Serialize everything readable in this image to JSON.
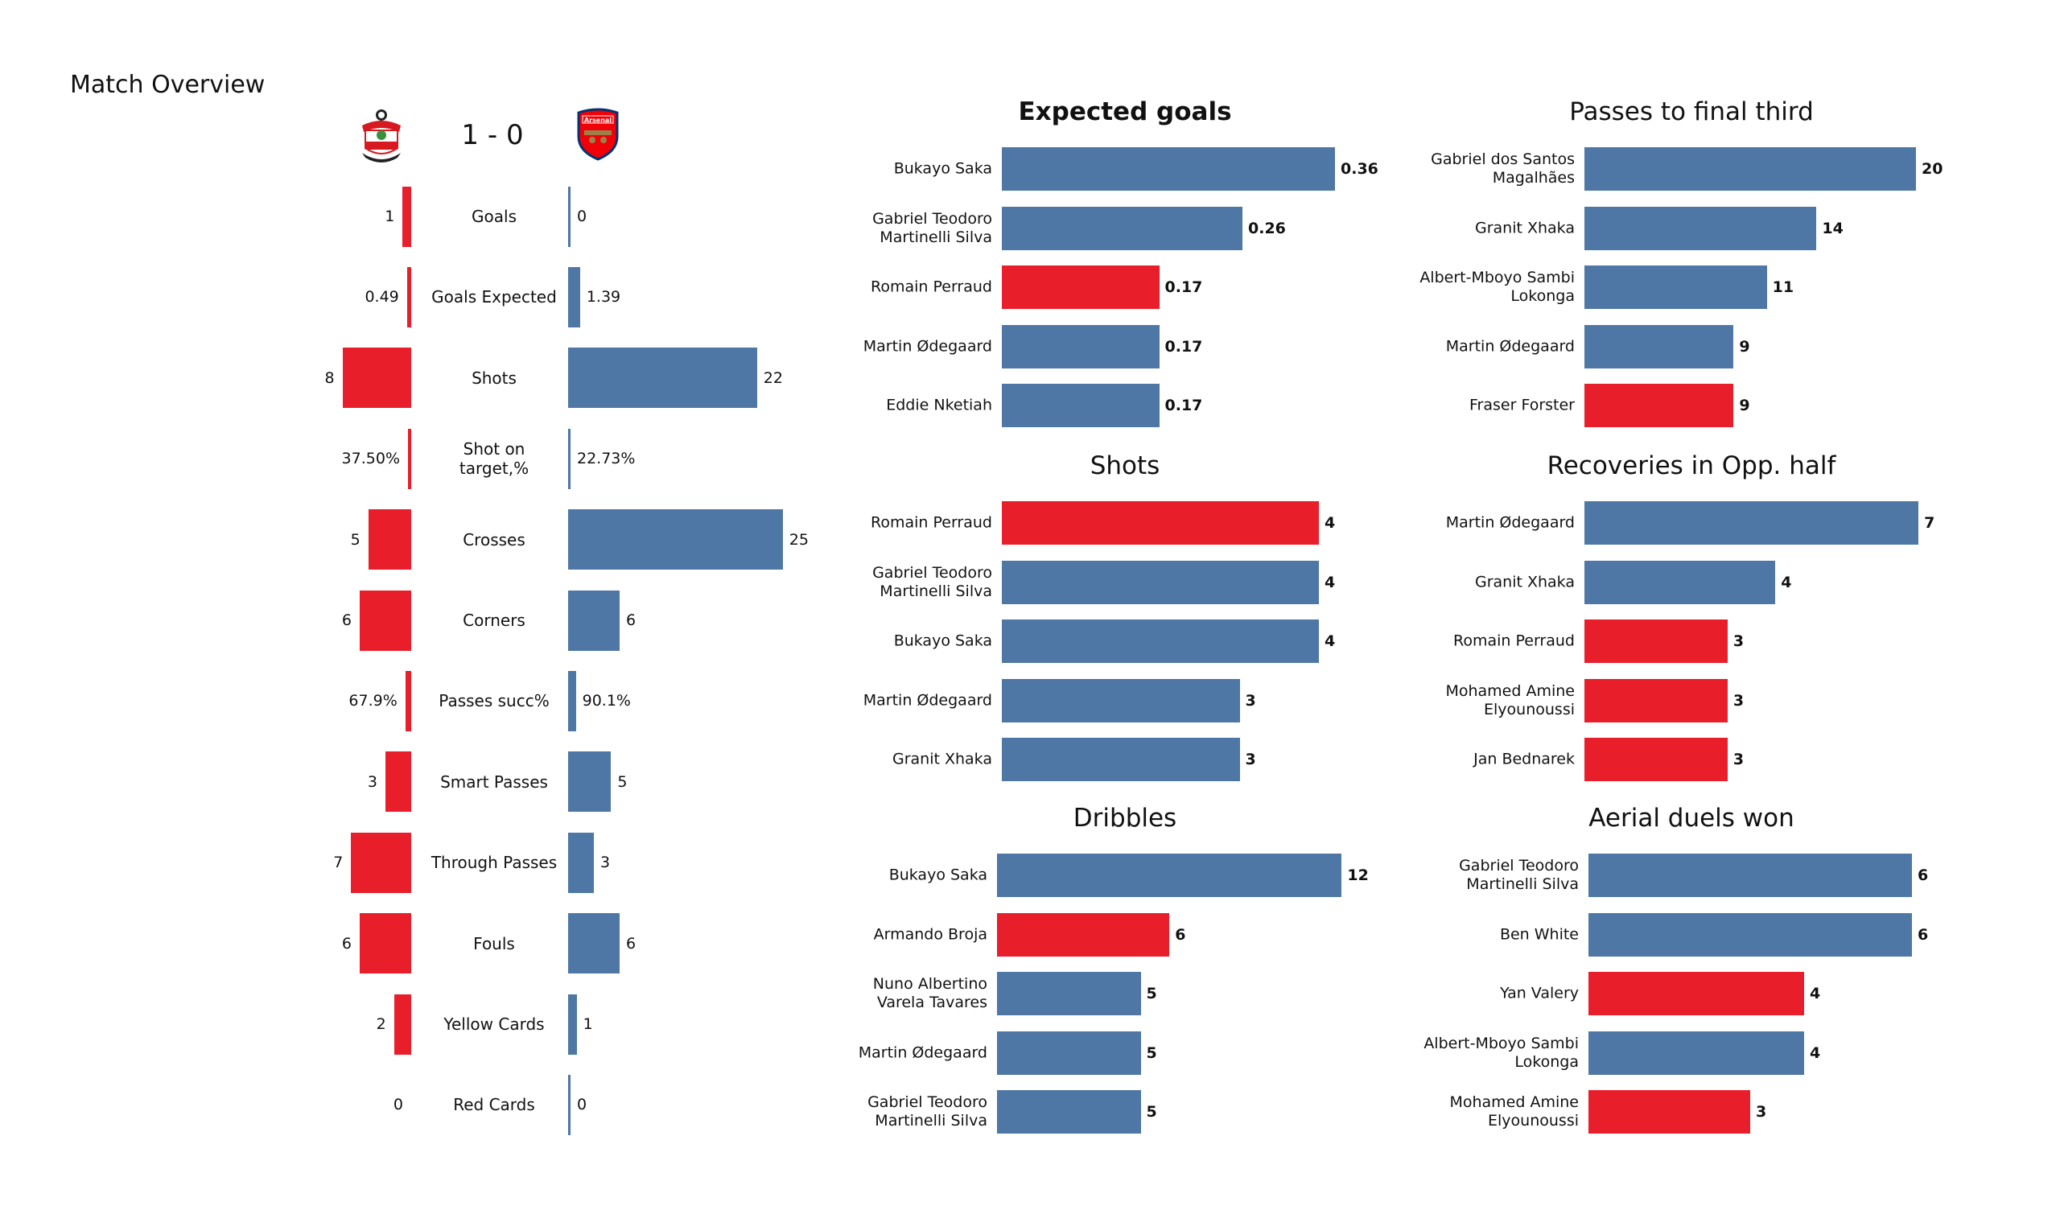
{
  "header": {
    "title": "Match Overview",
    "score": "1 - 0",
    "home_team_logo": "southampton-crest",
    "away_team_logo": "arsenal-crest"
  },
  "colors": {
    "home": "#e81e2b",
    "away": "#4e77a5"
  },
  "chart_data": [
    {
      "type": "bar",
      "orientation": "diverging-horizontal",
      "title": "Match Overview",
      "categories": [
        "Goals",
        "Goals Expected",
        "Shots",
        "Shot on\ntarget,%",
        "Crosses",
        "Corners",
        "Passes succ%",
        "Smart Passes",
        "Through Passes",
        "Fouls",
        "Yellow Cards",
        "Red Cards"
      ],
      "series": [
        {
          "side": "home",
          "values": [
            1,
            0.49,
            8,
            0.375,
            5,
            6,
            0.679,
            3,
            7,
            6,
            2,
            0
          ],
          "labels": [
            "1",
            "0.49",
            "8",
            "37.50%",
            "5",
            "6",
            "67.9%",
            "3",
            "7",
            "6",
            "2",
            "0"
          ]
        },
        {
          "side": "away",
          "values": [
            0,
            1.39,
            22,
            0.2273,
            25,
            6,
            0.901,
            5,
            3,
            6,
            1,
            0
          ],
          "labels": [
            "0",
            "1.39",
            "22",
            "22.73%",
            "25",
            "6",
            "90.1%",
            "5",
            "3",
            "6",
            "1",
            "0"
          ]
        }
      ]
    },
    {
      "type": "bar",
      "title": "Expected goals",
      "bold": true,
      "categories": [
        "Bukayo Saka",
        "Gabriel Teodoro\nMartinelli Silva",
        "Romain Perraud",
        "Martin Ødegaard",
        "Eddie Nketiah"
      ],
      "values": [
        0.36,
        0.26,
        0.17,
        0.17,
        0.17
      ],
      "labels": [
        "0.36",
        "0.26",
        "0.17",
        "0.17",
        "0.17"
      ],
      "teams": [
        "away",
        "away",
        "home",
        "away",
        "away"
      ]
    },
    {
      "type": "bar",
      "title": "Shots",
      "categories": [
        "Romain Perraud",
        "Gabriel Teodoro\nMartinelli Silva",
        "Bukayo Saka",
        "Martin Ødegaard",
        "Granit Xhaka"
      ],
      "values": [
        4,
        4,
        4,
        3,
        3
      ],
      "labels": [
        "4",
        "4",
        "4",
        "3",
        "3"
      ],
      "teams": [
        "home",
        "away",
        "away",
        "away",
        "away"
      ]
    },
    {
      "type": "bar",
      "title": "Dribbles",
      "categories": [
        "Bukayo Saka",
        "Armando Broja",
        "Nuno Albertino\nVarela Tavares",
        "Martin Ødegaard",
        "Gabriel Teodoro\nMartinelli Silva"
      ],
      "values": [
        12,
        6,
        5,
        5,
        5
      ],
      "labels": [
        "12",
        "6",
        "5",
        "5",
        "5"
      ],
      "teams": [
        "away",
        "home",
        "away",
        "away",
        "away"
      ]
    },
    {
      "type": "bar",
      "title": "Passes to final third",
      "categories": [
        "Gabriel dos Santos\nMagalhães",
        "Granit Xhaka",
        "Albert-Mboyo Sambi\nLokonga",
        "Martin Ødegaard",
        "Fraser Forster"
      ],
      "values": [
        20,
        14,
        11,
        9,
        9
      ],
      "labels": [
        "20",
        "14",
        "11",
        "9",
        "9"
      ],
      "teams": [
        "away",
        "away",
        "away",
        "away",
        "home"
      ]
    },
    {
      "type": "bar",
      "title": "Recoveries in Opp. half",
      "categories": [
        "Martin Ødegaard",
        "Granit Xhaka",
        "Romain Perraud",
        "Mohamed Amine\nElyounoussi",
        "Jan Bednarek"
      ],
      "values": [
        7,
        4,
        3,
        3,
        3
      ],
      "labels": [
        "7",
        "4",
        "3",
        "3",
        "3"
      ],
      "teams": [
        "away",
        "away",
        "home",
        "home",
        "home"
      ]
    },
    {
      "type": "bar",
      "title": "Aerial duels won",
      "categories": [
        "Gabriel Teodoro\nMartinelli Silva",
        "Ben White",
        "Yan Valery",
        "Albert-Mboyo Sambi\nLokonga",
        "Mohamed Amine\nElyounoussi"
      ],
      "values": [
        6,
        6,
        4,
        4,
        3
      ],
      "labels": [
        "6",
        "6",
        "4",
        "4",
        "3"
      ],
      "teams": [
        "away",
        "away",
        "home",
        "away",
        "home"
      ]
    }
  ]
}
